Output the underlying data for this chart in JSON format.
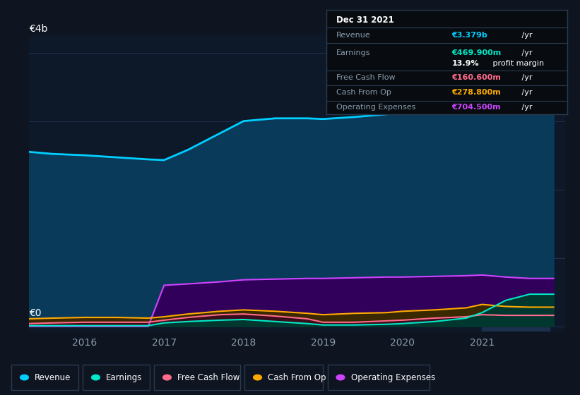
{
  "background_color": "#0e1420",
  "plot_bg_color": "#0d1828",
  "grid_color": "#1e3050",
  "highlight_color": "#1e3555",
  "x": [
    2015.3,
    2015.6,
    2016.0,
    2016.4,
    2016.8,
    2017.0,
    2017.3,
    2017.7,
    2018.0,
    2018.4,
    2018.8,
    2019.0,
    2019.4,
    2019.8,
    2020.0,
    2020.4,
    2020.8,
    2021.0,
    2021.3,
    2021.6,
    2021.9
  ],
  "revenue": [
    2.55,
    2.52,
    2.5,
    2.47,
    2.44,
    2.43,
    2.58,
    2.82,
    3.0,
    3.04,
    3.04,
    3.03,
    3.06,
    3.1,
    3.17,
    3.28,
    3.44,
    3.5,
    3.44,
    3.39,
    3.38
  ],
  "earnings": [
    0.01,
    0.01,
    0.01,
    0.01,
    0.01,
    0.05,
    0.07,
    0.09,
    0.1,
    0.07,
    0.04,
    0.02,
    0.02,
    0.03,
    0.04,
    0.07,
    0.12,
    0.2,
    0.38,
    0.47,
    0.47
  ],
  "free_cash_flow": [
    0.04,
    0.05,
    0.06,
    0.06,
    0.06,
    0.09,
    0.13,
    0.17,
    0.18,
    0.15,
    0.11,
    0.06,
    0.06,
    0.08,
    0.09,
    0.12,
    0.14,
    0.17,
    0.16,
    0.16,
    0.16
  ],
  "cash_from_op": [
    0.11,
    0.12,
    0.13,
    0.13,
    0.12,
    0.14,
    0.18,
    0.22,
    0.24,
    0.22,
    0.19,
    0.17,
    0.19,
    0.2,
    0.22,
    0.24,
    0.27,
    0.32,
    0.29,
    0.28,
    0.28
  ],
  "operating_expenses": [
    0.0,
    0.0,
    0.0,
    0.0,
    0.0,
    0.6,
    0.62,
    0.65,
    0.68,
    0.69,
    0.7,
    0.7,
    0.71,
    0.72,
    0.72,
    0.73,
    0.74,
    0.75,
    0.72,
    0.7,
    0.7
  ],
  "revenue_color": "#00cfff",
  "revenue_fill": "#0a3a5a",
  "earnings_color": "#00e8c8",
  "earnings_fill": "#003830",
  "free_cash_flow_color": "#ff6b8a",
  "free_cash_flow_fill": "#3a0d1a",
  "cash_from_op_color": "#ffaa00",
  "cash_from_op_fill": "#3a2800",
  "operating_expenses_color": "#cc44ff",
  "operating_expenses_fill": "#30005a",
  "highlight_x_start": 2021.0,
  "highlight_x_end": 2021.85,
  "ylim": [
    -0.08,
    4.25
  ],
  "xlim": [
    2015.3,
    2022.05
  ],
  "xticks": [
    2016,
    2017,
    2018,
    2019,
    2020,
    2021
  ],
  "tooltip_title": "Dec 31 2021",
  "tooltip_bg": "#080c10",
  "tooltip_border": "#2a3a50",
  "tooltip_rows": [
    {
      "label": "Revenue",
      "value": "€3.379b",
      "suffix": " /yr",
      "color": "#00cfff",
      "sub": ""
    },
    {
      "label": "Earnings",
      "value": "€469.900m",
      "suffix": " /yr",
      "color": "#00e8c8",
      "sub": "13.9% profit margin"
    },
    {
      "label": "Free Cash Flow",
      "value": "€160.600m",
      "suffix": " /yr",
      "color": "#ff6b8a",
      "sub": ""
    },
    {
      "label": "Cash From Op",
      "value": "€278.800m",
      "suffix": " /yr",
      "color": "#ffaa00",
      "sub": ""
    },
    {
      "label": "Operating Expenses",
      "value": "€704.500m",
      "suffix": " /yr",
      "color": "#cc44ff",
      "sub": ""
    }
  ],
  "legend_items": [
    {
      "label": "Revenue",
      "color": "#00cfff"
    },
    {
      "label": "Earnings",
      "color": "#00e8c8"
    },
    {
      "label": "Free Cash Flow",
      "color": "#ff6b8a"
    },
    {
      "label": "Cash From Op",
      "color": "#ffaa00"
    },
    {
      "label": "Operating Expenses",
      "color": "#cc44ff"
    }
  ],
  "label_color": "#8899aa",
  "white": "#ffffff"
}
